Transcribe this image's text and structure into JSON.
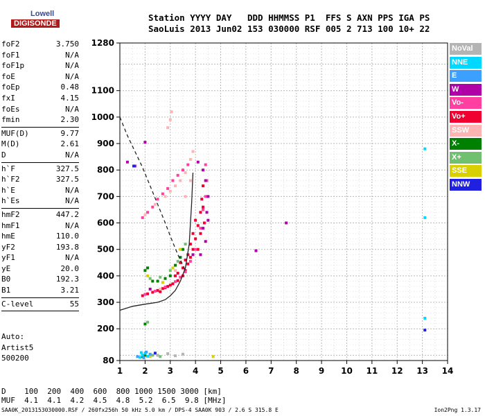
{
  "logo": {
    "lowell": "Lowell",
    "digisonde": "DIGISONDE"
  },
  "header": {
    "line1": "Station YYYY DAY   DDD HHMMSS P1  FFS S AXN PPS IGA PS",
    "line2": "SaoLuis 2013 Jun02 153 030000 RSF 005 2 713 100 10+ 22"
  },
  "params": [
    {
      "label": "foF2",
      "value": "3.750"
    },
    {
      "label": "foF1",
      "value": "N/A"
    },
    {
      "label": "foF1p",
      "value": "N/A"
    },
    {
      "label": "foE",
      "value": "N/A"
    },
    {
      "label": "foEp",
      "value": "0.48"
    },
    {
      "label": "fxI",
      "value": "4.15"
    },
    {
      "label": "foEs",
      "value": "N/A"
    },
    {
      "label": "fmin",
      "value": "2.30"
    },
    {
      "label": "MUF(D)",
      "value": "9.77"
    },
    {
      "label": "M(D)",
      "value": "2.61"
    },
    {
      "label": "D",
      "value": "N/A"
    },
    {
      "label": "h`F",
      "value": "327.5"
    },
    {
      "label": "h`F2",
      "value": "327.5"
    },
    {
      "label": "h`E",
      "value": "N/A"
    },
    {
      "label": "h`Es",
      "value": "N/A"
    },
    {
      "label": "hmF2",
      "value": "447.2"
    },
    {
      "label": "hmF1",
      "value": "N/A"
    },
    {
      "label": "hmE",
      "value": "110.0"
    },
    {
      "label": "yF2",
      "value": "193.8"
    },
    {
      "label": "yF1",
      "value": "N/A"
    },
    {
      "label": "yE",
      "value": "20.0"
    },
    {
      "label": "B0",
      "value": "192.3"
    },
    {
      "label": "B1",
      "value": "3.21"
    },
    {
      "label": "C-level",
      "value": "55"
    }
  ],
  "auto": {
    "line1": "Auto:",
    "line2": "Artist5",
    "line3": "500200"
  },
  "dmuf": {
    "d_line": "D    100  200  400  600  800 1000 1500 3000 [km]",
    "muf_line": "MUF  4.1  4.1  4.2  4.5  4.8  5.2  6.5  9.8 [MHz]"
  },
  "footer": {
    "left": "SAA0K_2013153030000.RSF / 260fx256h 50 kHz 5.0 km / DPS-4 SAA0K 903 / 2.6 S 315.8 E",
    "right": "Ion2Png 1.3.17"
  },
  "legend": [
    {
      "label": "NoVal",
      "color": "#b4b4b4"
    },
    {
      "label": "NNE",
      "color": "#00d8ff"
    },
    {
      "label": "E",
      "color": "#3ca0ff"
    },
    {
      "label": "W",
      "color": "#b000a8"
    },
    {
      "label": "Vo-",
      "color": "#ff40a0"
    },
    {
      "label": "Vo+",
      "color": "#f00030"
    },
    {
      "label": "SSW",
      "color": "#ffb4b4"
    },
    {
      "label": "X-",
      "color": "#008000"
    },
    {
      "label": "X+",
      "color": "#70c070"
    },
    {
      "label": "SSE",
      "color": "#d8d000"
    },
    {
      "label": "NNW",
      "color": "#2020e0"
    }
  ],
  "chart_data": {
    "type": "scatter",
    "xlim": [
      1,
      14
    ],
    "ylim": [
      80,
      1280
    ],
    "xticks": [
      "1",
      "2",
      "3",
      "4",
      "5",
      "6",
      "7",
      "8",
      "9",
      "10",
      "11",
      "12",
      "13",
      "14"
    ],
    "yticks": [
      "80",
      "200",
      "300",
      "400",
      "500",
      "600",
      "700",
      "800",
      "900",
      "1000",
      "1100",
      "1280"
    ],
    "grid": true,
    "series": [
      {
        "name": "Vo+",
        "color": "#f00030",
        "points": [
          [
            1.9,
            325
          ],
          [
            2.1,
            332
          ],
          [
            2.3,
            338
          ],
          [
            2.5,
            345
          ],
          [
            2.7,
            352
          ],
          [
            2.9,
            360
          ],
          [
            3.1,
            370
          ],
          [
            3.3,
            382
          ],
          [
            3.5,
            400
          ],
          [
            3.6,
            420
          ],
          [
            3.7,
            445
          ],
          [
            3.8,
            470
          ],
          [
            3.9,
            500
          ],
          [
            4.0,
            540
          ],
          [
            4.1,
            590
          ],
          [
            4.2,
            640
          ],
          [
            4.25,
            690
          ],
          [
            4.3,
            740
          ],
          [
            3.3,
            410
          ],
          [
            3.5,
            430
          ],
          [
            3.7,
            480
          ],
          [
            3.9,
            560
          ],
          [
            4.0,
            610
          ],
          [
            3.8,
            520
          ],
          [
            3.4,
            450
          ],
          [
            3.2,
            400
          ],
          [
            2.6,
            340
          ],
          [
            2.8,
            355
          ],
          [
            3.0,
            365
          ],
          [
            3.6,
            460
          ],
          [
            4.1,
            500
          ],
          [
            4.2,
            560
          ],
          [
            4.35,
            600
          ],
          [
            4.3,
            660
          ]
        ]
      },
      {
        "name": "Vo-",
        "color": "#ff40a0",
        "points": [
          [
            2.0,
            330
          ],
          [
            2.4,
            342
          ],
          [
            2.8,
            358
          ],
          [
            3.2,
            378
          ],
          [
            3.4,
            395
          ],
          [
            3.6,
            415
          ],
          [
            3.8,
            455
          ],
          [
            4.0,
            500
          ],
          [
            4.2,
            580
          ],
          [
            4.3,
            650
          ],
          [
            4.4,
            700
          ],
          [
            4.45,
            760
          ],
          [
            4.4,
            820
          ],
          [
            1.9,
            620
          ],
          [
            2.1,
            640
          ],
          [
            2.3,
            660
          ],
          [
            2.5,
            690
          ],
          [
            2.7,
            710
          ],
          [
            2.9,
            730
          ],
          [
            3.1,
            760
          ],
          [
            3.3,
            780
          ],
          [
            3.5,
            800
          ],
          [
            3.7,
            820
          ]
        ]
      },
      {
        "name": "SSW",
        "color": "#ffb4b4",
        "points": [
          [
            2.0,
            630
          ],
          [
            2.4,
            670
          ],
          [
            2.8,
            700
          ],
          [
            3.0,
            720
          ],
          [
            3.2,
            740
          ],
          [
            3.4,
            760
          ],
          [
            3.6,
            790
          ],
          [
            3.8,
            840
          ],
          [
            3.9,
            870
          ],
          [
            2.9,
            960
          ],
          [
            3.0,
            990
          ],
          [
            3.05,
            1020
          ],
          [
            3.6,
            700
          ],
          [
            3.8,
            760
          ],
          [
            2.6,
            350
          ],
          [
            3.2,
            420
          ]
        ]
      },
      {
        "name": "W",
        "color": "#b000a8",
        "points": [
          [
            1.3,
            830
          ],
          [
            1.6,
            815
          ],
          [
            2.0,
            905
          ],
          [
            4.1,
            830
          ],
          [
            4.3,
            800
          ],
          [
            4.4,
            760
          ],
          [
            4.5,
            700
          ],
          [
            4.45,
            640
          ],
          [
            4.3,
            580
          ],
          [
            4.4,
            530
          ],
          [
            4.2,
            480
          ],
          [
            4.5,
            610
          ],
          [
            7.6,
            600
          ],
          [
            6.4,
            495
          ],
          [
            2.2,
            350
          ],
          [
            3.9,
            480
          ]
        ]
      },
      {
        "name": "X-",
        "color": "#008000",
        "points": [
          [
            2.0,
            420
          ],
          [
            2.1,
            430
          ],
          [
            2.3,
            380
          ],
          [
            2.5,
            380
          ],
          [
            2.8,
            390
          ],
          [
            3.0,
            400
          ],
          [
            3.2,
            440
          ],
          [
            3.4,
            470
          ],
          [
            3.5,
            500
          ],
          [
            2.0,
            218
          ],
          [
            1.9,
            95
          ],
          [
            2.0,
            100
          ]
        ]
      },
      {
        "name": "X+",
        "color": "#70c070",
        "points": [
          [
            2.2,
            390
          ],
          [
            2.6,
            395
          ],
          [
            3.0,
            420
          ],
          [
            3.3,
            455
          ],
          [
            3.6,
            520
          ],
          [
            2.1,
            225
          ],
          [
            2.3,
            100
          ],
          [
            2.6,
            95
          ]
        ]
      },
      {
        "name": "SSE",
        "color": "#d8d000",
        "points": [
          [
            2.1,
            400
          ],
          [
            2.7,
            375
          ],
          [
            3.1,
            430
          ],
          [
            3.4,
            500
          ],
          [
            4.7,
            95
          ],
          [
            2.2,
            95
          ]
        ]
      },
      {
        "name": "NNE",
        "color": "#00d8ff",
        "points": [
          [
            1.8,
            92
          ],
          [
            1.9,
            100
          ],
          [
            2.0,
            108
          ],
          [
            2.1,
            96
          ],
          [
            1.85,
            110
          ],
          [
            13.1,
            240
          ],
          [
            13.1,
            880
          ],
          [
            13.1,
            620
          ]
        ]
      },
      {
        "name": "E",
        "color": "#3ca0ff",
        "points": [
          [
            1.7,
            95
          ],
          [
            1.95,
            90
          ],
          [
            2.05,
            112
          ],
          [
            2.2,
            104
          ]
        ]
      },
      {
        "name": "NNW",
        "color": "#2020e0",
        "points": [
          [
            1.55,
            815
          ],
          [
            13.1,
            195
          ],
          [
            2.4,
            108
          ]
        ]
      },
      {
        "name": "NoVal",
        "color": "#b4b4b4",
        "points": [
          [
            2.5,
            100
          ],
          [
            2.9,
            106
          ],
          [
            3.2,
            98
          ],
          [
            3.5,
            104
          ]
        ]
      }
    ],
    "curves": [
      {
        "style": "solid",
        "points": [
          [
            1.0,
            270
          ],
          [
            1.5,
            285
          ],
          [
            2.0,
            293
          ],
          [
            2.5,
            300
          ],
          [
            2.8,
            310
          ],
          [
            3.0,
            325
          ],
          [
            3.2,
            345
          ],
          [
            3.4,
            380
          ],
          [
            3.6,
            430
          ],
          [
            3.75,
            520
          ],
          [
            3.85,
            680
          ],
          [
            3.9,
            790
          ]
        ]
      },
      {
        "style": "dashed",
        "points": [
          [
            1.0,
            1000
          ],
          [
            1.3,
            930
          ],
          [
            1.6,
            870
          ],
          [
            1.9,
            810
          ],
          [
            2.2,
            740
          ],
          [
            2.5,
            670
          ],
          [
            2.8,
            600
          ],
          [
            3.0,
            550
          ],
          [
            3.3,
            480
          ],
          [
            3.6,
            420
          ]
        ]
      }
    ]
  }
}
